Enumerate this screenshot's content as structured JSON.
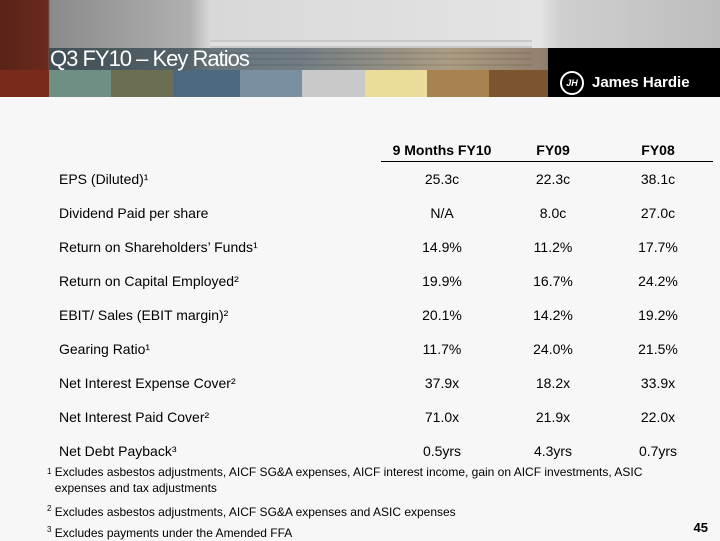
{
  "title": "Q3 FY10 – Key Ratios",
  "logo": {
    "text": "James Hardie",
    "mark": "JH"
  },
  "bars": [
    "#7a2a1a",
    "#6f8f85",
    "#6b6e50",
    "#4b6a80",
    "#7a90a0",
    "#c9c9c9",
    "#ebdc9a",
    "#a8824f",
    "#7a5530"
  ],
  "table": {
    "headers": [
      "9 Months FY10",
      "FY09",
      "FY08"
    ],
    "rows": [
      {
        "label": "EPS (Diluted)¹",
        "v": [
          "25.3c",
          "22.3c",
          "38.1c"
        ]
      },
      {
        "label": "Dividend Paid per share",
        "v": [
          "N/A",
          "8.0c",
          "27.0c"
        ]
      },
      {
        "label": "Return on Shareholders’ Funds¹",
        "v": [
          "14.9%",
          "11.2%",
          "17.7%"
        ]
      },
      {
        "label": "Return on Capital Employed²",
        "v": [
          "19.9%",
          "16.7%",
          "24.2%"
        ]
      },
      {
        "label": "EBIT/ Sales (EBIT margin)²",
        "v": [
          "20.1%",
          "14.2%",
          "19.2%"
        ]
      },
      {
        "label": "Gearing Ratio¹",
        "v": [
          "11.7%",
          "24.0%",
          "21.5%"
        ]
      },
      {
        "label": "Net Interest Expense Cover²",
        "v": [
          "37.9x",
          "18.2x",
          "33.9x"
        ]
      },
      {
        "label": "Net Interest Paid Cover²",
        "v": [
          "71.0x",
          "21.9x",
          "22.0x"
        ]
      },
      {
        "label": "Net Debt Payback³",
        "v": [
          "0.5yrs",
          "4.3yrs",
          "0.7yrs"
        ]
      }
    ]
  },
  "footnotes": [
    {
      "n": "1",
      "text": "Excludes asbestos adjustments, AICF SG&A expenses, AICF interest income, gain on AICF investments, ASIC expenses and tax adjustments"
    },
    {
      "n": "2",
      "text": "Excludes asbestos adjustments, AICF SG&A expenses and ASIC expenses"
    },
    {
      "n": "3",
      "text": "Excludes payments under the Amended FFA"
    }
  ],
  "page_number": "45"
}
